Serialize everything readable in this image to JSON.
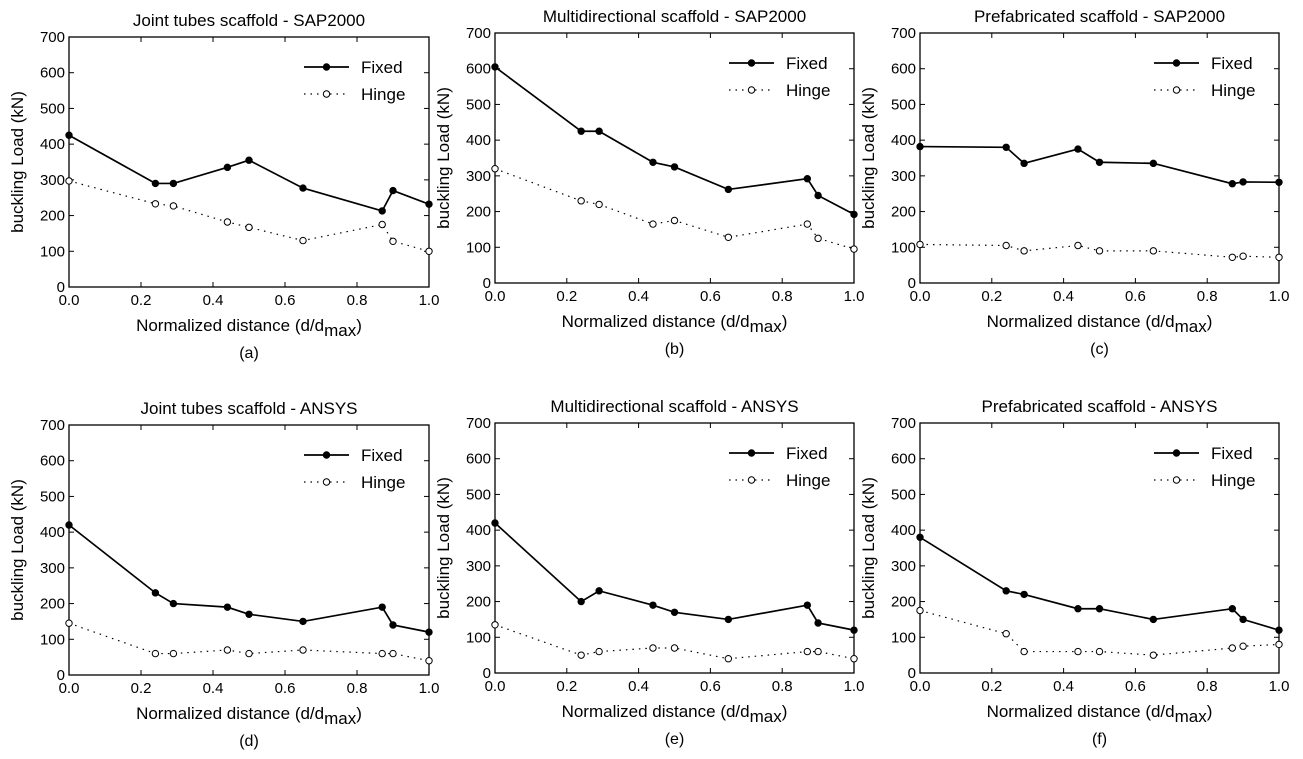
{
  "chart_data": [
    {
      "type": "line",
      "caption": "(a)",
      "title": "Joint tubes scaffold - SAP2000",
      "xlabel": "Normalized distance (d/d",
      "xlabel_sub": "max",
      "xlabel_close": ")",
      "ylabel": "buckling Load (kN)",
      "xlim": [
        0,
        1
      ],
      "ylim": [
        0,
        700
      ],
      "xticks": [
        "0.0",
        "0.2",
        "0.4",
        "0.6",
        "0.8",
        "1.0"
      ],
      "yticks": [
        "0",
        "100",
        "200",
        "300",
        "400",
        "500",
        "600",
        "700"
      ],
      "legend_position": "top-right",
      "x": [
        0,
        0.24,
        0.29,
        0.44,
        0.5,
        0.65,
        0.87,
        0.9,
        1.0
      ],
      "series": [
        {
          "name": "Fixed",
          "style": "solid",
          "values": [
            425,
            290,
            290,
            335,
            355,
            277,
            213,
            270,
            232
          ]
        },
        {
          "name": "Hinge",
          "style": "dotted",
          "values": [
            297,
            233,
            227,
            182,
            167,
            130,
            175,
            128,
            100
          ]
        }
      ]
    },
    {
      "type": "line",
      "caption": "(b)",
      "title": "Multidirectional scaffold - SAP2000",
      "xlabel": "Normalized distance (d/d",
      "xlabel_sub": "max",
      "xlabel_close": ")",
      "ylabel": "buckling Load (kN)",
      "xlim": [
        0,
        1
      ],
      "ylim": [
        0,
        700
      ],
      "xticks": [
        "0.0",
        "0.2",
        "0.4",
        "0.6",
        "0.8",
        "1.0"
      ],
      "yticks": [
        "0",
        "100",
        "200",
        "300",
        "400",
        "500",
        "600",
        "700"
      ],
      "legend_position": "top-right",
      "x": [
        0,
        0.24,
        0.29,
        0.44,
        0.5,
        0.65,
        0.87,
        0.9,
        1.0
      ],
      "series": [
        {
          "name": "Fixed",
          "style": "solid",
          "values": [
            605,
            425,
            425,
            338,
            325,
            262,
            292,
            245,
            192
          ]
        },
        {
          "name": "Hinge",
          "style": "dotted",
          "values": [
            320,
            230,
            220,
            165,
            175,
            128,
            165,
            125,
            95
          ]
        }
      ]
    },
    {
      "type": "line",
      "caption": "(c)",
      "title": "Prefabricated scaffold - SAP2000",
      "xlabel": "Normalized distance (d/d",
      "xlabel_sub": "max",
      "xlabel_close": ")",
      "ylabel": "buckling Load (kN)",
      "xlim": [
        0,
        1
      ],
      "ylim": [
        0,
        700
      ],
      "xticks": [
        "0.0",
        "0.2",
        "0.4",
        "0.6",
        "0.8",
        "1.0"
      ],
      "yticks": [
        "0",
        "100",
        "200",
        "300",
        "400",
        "500",
        "600",
        "700"
      ],
      "legend_position": "top-right",
      "x": [
        0,
        0.24,
        0.29,
        0.44,
        0.5,
        0.65,
        0.87,
        0.9,
        1.0
      ],
      "series": [
        {
          "name": "Fixed",
          "style": "solid",
          "values": [
            382,
            380,
            335,
            375,
            338,
            335,
            278,
            283,
            282
          ]
        },
        {
          "name": "Hinge",
          "style": "dotted",
          "values": [
            108,
            105,
            90,
            105,
            90,
            90,
            72,
            75,
            72
          ]
        }
      ]
    },
    {
      "type": "line",
      "caption": "(d)",
      "title": "Joint tubes scaffold - ANSYS",
      "xlabel": "Normalized distance (d/d",
      "xlabel_sub": "max",
      "xlabel_close": ")",
      "ylabel": "buckling Load (kN)",
      "xlim": [
        0,
        1
      ],
      "ylim": [
        0,
        700
      ],
      "xticks": [
        "0.0",
        "0.2",
        "0.4",
        "0.6",
        "0.8",
        "1.0"
      ],
      "yticks": [
        "0",
        "100",
        "200",
        "300",
        "400",
        "500",
        "600",
        "700"
      ],
      "legend_position": "top-right",
      "x": [
        0,
        0.24,
        0.29,
        0.44,
        0.5,
        0.65,
        0.87,
        0.9,
        1.0
      ],
      "series": [
        {
          "name": "Fixed",
          "style": "solid",
          "values": [
            420,
            230,
            200,
            190,
            170,
            150,
            190,
            140,
            120
          ]
        },
        {
          "name": "Hinge",
          "style": "dotted",
          "values": [
            145,
            60,
            60,
            70,
            60,
            70,
            60,
            60,
            40
          ]
        }
      ]
    },
    {
      "type": "line",
      "caption": "(e)",
      "title": "Multidirectional scaffold - ANSYS",
      "xlabel": "Normalized distance (d/d",
      "xlabel_sub": "max",
      "xlabel_close": ")",
      "ylabel": "buckling Load (kN)",
      "xlim": [
        0,
        1
      ],
      "ylim": [
        0,
        700
      ],
      "xticks": [
        "0.0",
        "0.2",
        "0.4",
        "0.6",
        "0.8",
        "1.0"
      ],
      "yticks": [
        "0",
        "100",
        "200",
        "300",
        "400",
        "500",
        "600",
        "700"
      ],
      "legend_position": "top-right",
      "x": [
        0,
        0.24,
        0.29,
        0.44,
        0.5,
        0.65,
        0.87,
        0.9,
        1.0
      ],
      "series": [
        {
          "name": "Fixed",
          "style": "solid",
          "values": [
            420,
            200,
            230,
            190,
            170,
            150,
            190,
            140,
            120
          ]
        },
        {
          "name": "Hinge",
          "style": "dotted",
          "values": [
            135,
            50,
            60,
            70,
            70,
            40,
            60,
            60,
            40
          ]
        }
      ]
    },
    {
      "type": "line",
      "caption": "(f)",
      "title": "Prefabricated scaffold - ANSYS",
      "xlabel": "Normalized distance (d/d",
      "xlabel_sub": "max",
      "xlabel_close": ")",
      "ylabel": "buckling Load (kN)",
      "xlim": [
        0,
        1
      ],
      "ylim": [
        0,
        700
      ],
      "xticks": [
        "0.0",
        "0.2",
        "0.4",
        "0.6",
        "0.8",
        "1.0"
      ],
      "yticks": [
        "0",
        "100",
        "200",
        "300",
        "400",
        "500",
        "600",
        "700"
      ],
      "legend_position": "top-right",
      "x": [
        0,
        0.24,
        0.29,
        0.44,
        0.5,
        0.65,
        0.87,
        0.9,
        1.0
      ],
      "series": [
        {
          "name": "Fixed",
          "style": "solid",
          "values": [
            380,
            230,
            220,
            180,
            180,
            150,
            180,
            150,
            120
          ]
        },
        {
          "name": "Hinge",
          "style": "dotted",
          "values": [
            175,
            110,
            60,
            60,
            60,
            50,
            70,
            75,
            80
          ]
        }
      ]
    }
  ]
}
